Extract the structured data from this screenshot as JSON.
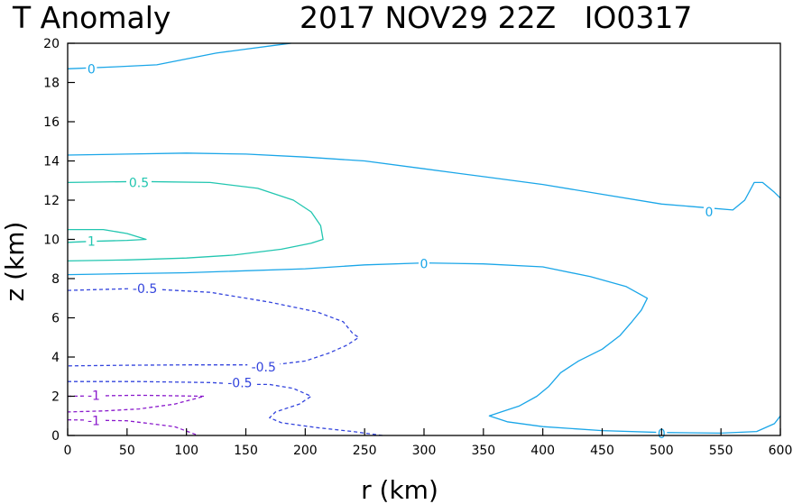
{
  "chart_data": {
    "type": "contour",
    "title_left": "T Anomaly",
    "title_right": "2017 NOV29 22Z   IO0317",
    "xlabel": "r (km)",
    "ylabel": "z (km)",
    "xlim": [
      0,
      600
    ],
    "ylim": [
      0,
      20
    ],
    "xticks": [
      0,
      50,
      100,
      150,
      200,
      250,
      300,
      350,
      400,
      450,
      500,
      550,
      600
    ],
    "yticks": [
      0,
      2,
      4,
      6,
      8,
      10,
      12,
      14,
      16,
      18,
      20
    ],
    "grid": false,
    "colors": {
      "0": "#1aa6e8",
      "0.5": "#22c6b0",
      "1": "#22c6b0",
      "-0.5": "#3344dd",
      "-1": "#8a1acc"
    },
    "contours": [
      {
        "level": 0,
        "label": "0",
        "dashed": false,
        "color": "#1aa6e8",
        "points": [
          [
            0,
            18.7
          ],
          [
            40,
            18.8
          ],
          [
            75,
            18.9
          ],
          [
            100,
            19.2
          ],
          [
            125,
            19.5
          ],
          [
            150,
            19.7
          ],
          [
            175,
            19.9
          ],
          [
            188,
            20.0
          ]
        ],
        "labels": [
          {
            "text": "0",
            "x": 20,
            "y": 18.7
          }
        ]
      },
      {
        "level": 0,
        "label": "0",
        "dashed": false,
        "color": "#1aa6e8",
        "points": [
          [
            0,
            14.3
          ],
          [
            50,
            14.35
          ],
          [
            100,
            14.4
          ],
          [
            150,
            14.35
          ],
          [
            200,
            14.2
          ],
          [
            250,
            14.0
          ],
          [
            300,
            13.6
          ],
          [
            350,
            13.2
          ],
          [
            400,
            12.8
          ],
          [
            450,
            12.3
          ],
          [
            500,
            11.8
          ],
          [
            540,
            11.6
          ],
          [
            560,
            11.5
          ],
          [
            570,
            12.0
          ],
          [
            578,
            12.9
          ],
          [
            585,
            12.9
          ],
          [
            595,
            12.4
          ],
          [
            600,
            12.1
          ]
        ],
        "labels": [
          {
            "text": "0",
            "x": 540,
            "y": 11.4
          }
        ]
      },
      {
        "level": 0,
        "label": "0",
        "dashed": false,
        "color": "#1aa6e8",
        "points": [
          [
            0,
            8.2
          ],
          [
            100,
            8.3
          ],
          [
            200,
            8.5
          ],
          [
            250,
            8.7
          ],
          [
            300,
            8.8
          ],
          [
            350,
            8.75
          ],
          [
            400,
            8.6
          ],
          [
            440,
            8.1
          ],
          [
            470,
            7.6
          ],
          [
            488,
            7.0
          ],
          [
            483,
            6.4
          ],
          [
            475,
            5.8
          ],
          [
            465,
            5.1
          ],
          [
            450,
            4.4
          ],
          [
            430,
            3.8
          ],
          [
            415,
            3.2
          ],
          [
            405,
            2.5
          ],
          [
            395,
            2.0
          ],
          [
            380,
            1.5
          ],
          [
            365,
            1.2
          ],
          [
            355,
            1.0
          ],
          [
            370,
            0.7
          ],
          [
            400,
            0.45
          ],
          [
            450,
            0.25
          ],
          [
            500,
            0.15
          ],
          [
            550,
            0.12
          ],
          [
            580,
            0.2
          ],
          [
            595,
            0.6
          ],
          [
            600,
            1.0
          ]
        ],
        "labels": [
          {
            "text": "0",
            "x": 300,
            "y": 8.75
          },
          {
            "text": "0",
            "x": 500,
            "y": 0.1
          }
        ]
      },
      {
        "level": 0.5,
        "label": "0.5",
        "dashed": false,
        "color": "#22c6b0",
        "points": [
          [
            0,
            12.9
          ],
          [
            60,
            12.95
          ],
          [
            120,
            12.9
          ],
          [
            160,
            12.6
          ],
          [
            190,
            12.0
          ],
          [
            205,
            11.4
          ],
          [
            213,
            10.7
          ],
          [
            215,
            10.0
          ],
          [
            205,
            9.8
          ],
          [
            180,
            9.5
          ],
          [
            140,
            9.2
          ],
          [
            100,
            9.05
          ],
          [
            50,
            8.95
          ],
          [
            0,
            8.9
          ]
        ],
        "labels": [
          {
            "text": "0.5",
            "x": 60,
            "y": 12.9
          }
        ]
      },
      {
        "level": 1,
        "label": "1",
        "dashed": false,
        "color": "#22c6b0",
        "points": [
          [
            0,
            10.5
          ],
          [
            30,
            10.5
          ],
          [
            50,
            10.3
          ],
          [
            66,
            10.0
          ],
          [
            50,
            9.95
          ],
          [
            20,
            9.9
          ],
          [
            0,
            9.85
          ]
        ],
        "labels": [
          {
            "text": "1",
            "x": 20,
            "y": 9.9
          }
        ]
      },
      {
        "level": -0.5,
        "label": "-0.5",
        "dashed": true,
        "color": "#3344dd",
        "points": [
          [
            0,
            7.4
          ],
          [
            60,
            7.5
          ],
          [
            120,
            7.3
          ],
          [
            170,
            6.8
          ],
          [
            210,
            6.3
          ],
          [
            232,
            5.8
          ],
          [
            240,
            5.2
          ],
          [
            245,
            5.0
          ],
          [
            235,
            4.6
          ],
          [
            220,
            4.2
          ],
          [
            200,
            3.8
          ],
          [
            180,
            3.65
          ],
          [
            150,
            3.6
          ],
          [
            100,
            3.6
          ],
          [
            50,
            3.58
          ],
          [
            0,
            3.55
          ]
        ],
        "labels": [
          {
            "text": "-0.5",
            "x": 65,
            "y": 7.5
          },
          {
            "text": "-0.5",
            "x": 165,
            "y": 3.5
          }
        ]
      },
      {
        "level": -0.5,
        "label": "-0.5",
        "dashed": true,
        "color": "#3344dd",
        "points": [
          [
            0,
            2.75
          ],
          [
            60,
            2.75
          ],
          [
            120,
            2.7
          ],
          [
            150,
            2.6
          ],
          [
            170,
            2.6
          ],
          [
            190,
            2.4
          ],
          [
            205,
            2.0
          ],
          [
            195,
            1.6
          ],
          [
            175,
            1.2
          ],
          [
            170,
            0.9
          ],
          [
            180,
            0.65
          ],
          [
            210,
            0.4
          ],
          [
            240,
            0.2
          ],
          [
            265,
            0.0
          ]
        ],
        "labels": [
          {
            "text": "-0.5",
            "x": 145,
            "y": 2.7
          }
        ]
      },
      {
        "level": -1,
        "label": "-1",
        "dashed": true,
        "color": "#8a1acc",
        "points": [
          [
            0,
            2.0
          ],
          [
            60,
            2.05
          ],
          [
            115,
            2.0
          ],
          [
            90,
            1.6
          ],
          [
            60,
            1.35
          ],
          [
            30,
            1.25
          ],
          [
            0,
            1.2
          ]
        ],
        "labels": [
          {
            "text": "-1",
            "x": 22,
            "y": 2.05
          }
        ]
      },
      {
        "level": -1,
        "label": "-1",
        "dashed": true,
        "color": "#8a1acc",
        "points": [
          [
            0,
            0.8
          ],
          [
            50,
            0.75
          ],
          [
            90,
            0.45
          ],
          [
            110,
            0.0
          ]
        ],
        "labels": [
          {
            "text": "-1",
            "x": 22,
            "y": 0.75
          }
        ]
      }
    ]
  }
}
